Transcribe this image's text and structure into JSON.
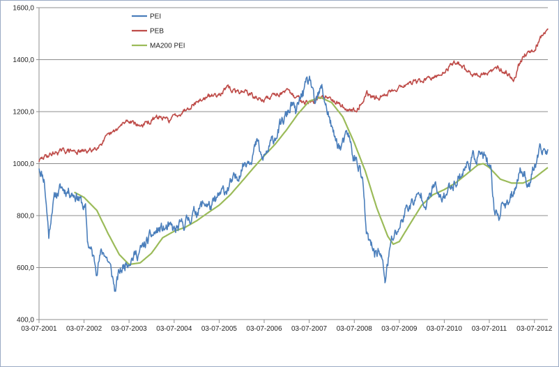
{
  "chart_data": {
    "type": "line",
    "title": "",
    "xlabel": "",
    "ylabel": "",
    "ylim": [
      400,
      1600
    ],
    "xlim": [
      "2001-07-03",
      "2012-10-20"
    ],
    "y_ticks": [
      "400,0",
      "600,0",
      "800,0",
      "1000,0",
      "1200,0",
      "1400,0",
      "1600,0"
    ],
    "y_tick_values": [
      400,
      600,
      800,
      1000,
      1200,
      1400,
      1600
    ],
    "x_ticks": [
      "03-07-2001",
      "03-07-2002",
      "03-07-2003",
      "03-07-2004",
      "03-07-2005",
      "03-07-2006",
      "03-07-2007",
      "03-07-2008",
      "03-07-2009",
      "03-07-2010",
      "03-07-2011",
      "03-07-2012"
    ],
    "x_tick_dates": [
      "2001-07-03",
      "2002-07-03",
      "2003-07-03",
      "2004-07-03",
      "2005-07-03",
      "2006-07-03",
      "2007-07-03",
      "2008-07-03",
      "2009-07-03",
      "2010-07-03",
      "2011-07-03",
      "2012-07-03"
    ],
    "grid": "horizontal",
    "legend_position": "top-left",
    "series": [
      {
        "name": "PEI",
        "color": "#4a7ebb",
        "points": [
          [
            "2001-07-03",
            990
          ],
          [
            "2001-08-15",
            940
          ],
          [
            "2001-09-21",
            720
          ],
          [
            "2001-10-15",
            830
          ],
          [
            "2001-11-15",
            880
          ],
          [
            "2002-01-01",
            905
          ],
          [
            "2002-03-15",
            895
          ],
          [
            "2002-05-15",
            875
          ],
          [
            "2002-07-15",
            820
          ],
          [
            "2002-08-01",
            700
          ],
          [
            "2002-09-01",
            660
          ],
          [
            "2002-10-10",
            600
          ],
          [
            "2002-11-15",
            650
          ],
          [
            "2002-12-15",
            660
          ],
          [
            "2003-01-20",
            620
          ],
          [
            "2003-02-20",
            560
          ],
          [
            "2003-03-12",
            510
          ],
          [
            "2003-04-15",
            580
          ],
          [
            "2003-05-15",
            600
          ],
          [
            "2003-06-15",
            625
          ],
          [
            "2003-07-15",
            640
          ],
          [
            "2003-09-01",
            650
          ],
          [
            "2003-10-15",
            670
          ],
          [
            "2004-01-01",
            720
          ],
          [
            "2004-03-01",
            745
          ],
          [
            "2004-05-15",
            750
          ],
          [
            "2004-07-15",
            740
          ],
          [
            "2004-09-01",
            760
          ],
          [
            "2004-10-15",
            780
          ],
          [
            "2005-01-01",
            820
          ],
          [
            "2005-03-15",
            850
          ],
          [
            "2005-05-01",
            830
          ],
          [
            "2005-07-15",
            880
          ],
          [
            "2005-09-15",
            910
          ],
          [
            "2005-11-15",
            940
          ],
          [
            "2006-01-15",
            1000
          ],
          [
            "2006-03-15",
            1030
          ],
          [
            "2006-05-10",
            1080
          ],
          [
            "2006-06-15",
            1010
          ],
          [
            "2006-08-15",
            1060
          ],
          [
            "2006-10-15",
            1120
          ],
          [
            "2006-12-15",
            1170
          ],
          [
            "2007-02-15",
            1230
          ],
          [
            "2007-03-15",
            1190
          ],
          [
            "2007-05-15",
            1280
          ],
          [
            "2007-07-15",
            1320
          ],
          [
            "2007-08-15",
            1220
          ],
          [
            "2007-10-15",
            1290
          ],
          [
            "2007-11-30",
            1200
          ],
          [
            "2008-01-21",
            1100
          ],
          [
            "2008-03-15",
            1060
          ],
          [
            "2008-05-15",
            1110
          ],
          [
            "2008-06-30",
            1020
          ],
          [
            "2008-08-15",
            990
          ],
          [
            "2008-09-15",
            900
          ],
          [
            "2008-10-10",
            720
          ],
          [
            "2008-11-15",
            680
          ],
          [
            "2008-12-15",
            660
          ],
          [
            "2009-01-15",
            670
          ],
          [
            "2009-02-15",
            620
          ],
          [
            "2009-03-09",
            550
          ],
          [
            "2009-04-01",
            620
          ],
          [
            "2009-05-01",
            700
          ],
          [
            "2009-06-15",
            740
          ],
          [
            "2009-07-15",
            770
          ],
          [
            "2009-09-01",
            830
          ],
          [
            "2009-10-15",
            850
          ],
          [
            "2010-01-01",
            880
          ],
          [
            "2010-02-15",
            850
          ],
          [
            "2010-04-15",
            920
          ],
          [
            "2010-05-25",
            860
          ],
          [
            "2010-07-15",
            880
          ],
          [
            "2010-09-01",
            920
          ],
          [
            "2010-11-01",
            950
          ],
          [
            "2011-01-15",
            1000
          ],
          [
            "2011-03-15",
            1030
          ],
          [
            "2011-05-01",
            1040
          ],
          [
            "2011-06-15",
            1000
          ],
          [
            "2011-07-15",
            960
          ],
          [
            "2011-08-10",
            830
          ],
          [
            "2011-09-20",
            800
          ],
          [
            "2011-10-20",
            860
          ],
          [
            "2011-11-25",
            830
          ],
          [
            "2012-01-01",
            880
          ],
          [
            "2012-03-15",
            980
          ],
          [
            "2012-04-15",
            960
          ],
          [
            "2012-05-20",
            920
          ],
          [
            "2012-06-15",
            960
          ],
          [
            "2012-07-15",
            1000
          ],
          [
            "2012-08-20",
            1040
          ],
          [
            "2012-09-20",
            1050
          ],
          [
            "2012-10-20",
            1055
          ]
        ]
      },
      {
        "name": "PEB",
        "color": "#be4b48",
        "points": [
          [
            "2001-07-03",
            1010
          ],
          [
            "2001-09-01",
            1030
          ],
          [
            "2001-12-01",
            1045
          ],
          [
            "2002-03-01",
            1050
          ],
          [
            "2002-06-01",
            1045
          ],
          [
            "2002-09-01",
            1050
          ],
          [
            "2002-12-01",
            1085
          ],
          [
            "2003-03-01",
            1120
          ],
          [
            "2003-05-01",
            1145
          ],
          [
            "2003-06-15",
            1165
          ],
          [
            "2003-08-01",
            1165
          ],
          [
            "2003-09-15",
            1145
          ],
          [
            "2003-12-01",
            1155
          ],
          [
            "2004-03-01",
            1180
          ],
          [
            "2004-05-15",
            1165
          ],
          [
            "2004-09-01",
            1200
          ],
          [
            "2004-12-01",
            1230
          ],
          [
            "2005-03-01",
            1250
          ],
          [
            "2005-06-01",
            1265
          ],
          [
            "2005-09-15",
            1290
          ],
          [
            "2005-11-15",
            1275
          ],
          [
            "2006-02-01",
            1280
          ],
          [
            "2006-05-01",
            1250
          ],
          [
            "2006-07-15",
            1245
          ],
          [
            "2006-10-01",
            1270
          ],
          [
            "2007-01-01",
            1275
          ],
          [
            "2007-03-15",
            1255
          ],
          [
            "2007-05-01",
            1250
          ],
          [
            "2007-07-01",
            1235
          ],
          [
            "2007-09-01",
            1245
          ],
          [
            "2007-11-15",
            1260
          ],
          [
            "2008-01-15",
            1250
          ],
          [
            "2008-04-01",
            1220
          ],
          [
            "2008-06-15",
            1200
          ],
          [
            "2008-08-15",
            1225
          ],
          [
            "2008-10-15",
            1270
          ],
          [
            "2008-12-15",
            1250
          ],
          [
            "2009-02-15",
            1260
          ],
          [
            "2009-05-01",
            1280
          ],
          [
            "2009-07-15",
            1300
          ],
          [
            "2009-10-15",
            1310
          ],
          [
            "2010-01-15",
            1320
          ],
          [
            "2010-04-15",
            1330
          ],
          [
            "2010-06-15",
            1345
          ],
          [
            "2010-08-15",
            1375
          ],
          [
            "2010-10-15",
            1395
          ],
          [
            "2010-12-15",
            1365
          ],
          [
            "2011-02-15",
            1345
          ],
          [
            "2011-05-01",
            1340
          ],
          [
            "2011-07-15",
            1350
          ],
          [
            "2011-09-15",
            1370
          ],
          [
            "2011-11-15",
            1355
          ],
          [
            "2012-01-15",
            1320
          ],
          [
            "2012-03-01",
            1385
          ],
          [
            "2012-04-15",
            1420
          ],
          [
            "2012-05-30",
            1435
          ],
          [
            "2012-07-15",
            1450
          ],
          [
            "2012-08-30",
            1490
          ],
          [
            "2012-10-20",
            1520
          ]
        ]
      },
      {
        "name": "MA200 PEI",
        "color": "#9bbb59",
        "points": [
          [
            "2002-04-15",
            890
          ],
          [
            "2002-07-03",
            870
          ],
          [
            "2002-10-15",
            820
          ],
          [
            "2003-01-15",
            730
          ],
          [
            "2003-04-15",
            650
          ],
          [
            "2003-07-03",
            612
          ],
          [
            "2003-10-01",
            618
          ],
          [
            "2004-01-01",
            655
          ],
          [
            "2004-04-01",
            715
          ],
          [
            "2004-07-03",
            740
          ],
          [
            "2004-10-01",
            755
          ],
          [
            "2005-01-01",
            780
          ],
          [
            "2005-04-01",
            810
          ],
          [
            "2005-07-03",
            840
          ],
          [
            "2005-10-01",
            880
          ],
          [
            "2006-01-01",
            930
          ],
          [
            "2006-04-01",
            980
          ],
          [
            "2006-07-03",
            1030
          ],
          [
            "2006-10-01",
            1075
          ],
          [
            "2007-01-01",
            1130
          ],
          [
            "2007-04-01",
            1190
          ],
          [
            "2007-07-03",
            1240
          ],
          [
            "2007-10-01",
            1255
          ],
          [
            "2008-01-01",
            1235
          ],
          [
            "2008-04-01",
            1180
          ],
          [
            "2008-07-03",
            1080
          ],
          [
            "2008-10-01",
            970
          ],
          [
            "2009-01-01",
            830
          ],
          [
            "2009-04-01",
            720
          ],
          [
            "2009-05-15",
            690
          ],
          [
            "2009-07-03",
            700
          ],
          [
            "2009-10-01",
            770
          ],
          [
            "2010-01-01",
            840
          ],
          [
            "2010-04-01",
            880
          ],
          [
            "2010-07-03",
            900
          ],
          [
            "2010-10-01",
            925
          ],
          [
            "2011-01-01",
            960
          ],
          [
            "2011-04-01",
            995
          ],
          [
            "2011-05-15",
            1000
          ],
          [
            "2011-07-03",
            985
          ],
          [
            "2011-10-01",
            940
          ],
          [
            "2012-01-01",
            925
          ],
          [
            "2012-04-01",
            925
          ],
          [
            "2012-07-03",
            945
          ],
          [
            "2012-10-20",
            985
          ]
        ]
      }
    ]
  }
}
